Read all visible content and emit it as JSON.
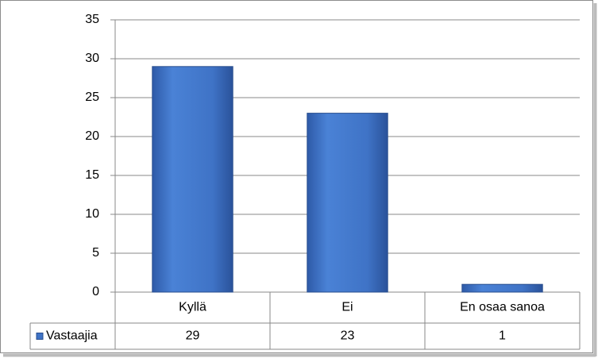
{
  "chart_data": {
    "type": "bar",
    "categories": [
      "Kyllä",
      "Ei",
      "En osaa sanoa"
    ],
    "series": [
      {
        "name": "Vastaajia",
        "color": "#3f73c6",
        "values": [
          29,
          23,
          1
        ]
      }
    ],
    "ylim": [
      0,
      35
    ],
    "yticks": [
      0,
      5,
      10,
      15,
      20,
      25,
      30,
      35
    ],
    "grid": true,
    "data_table": true
  }
}
